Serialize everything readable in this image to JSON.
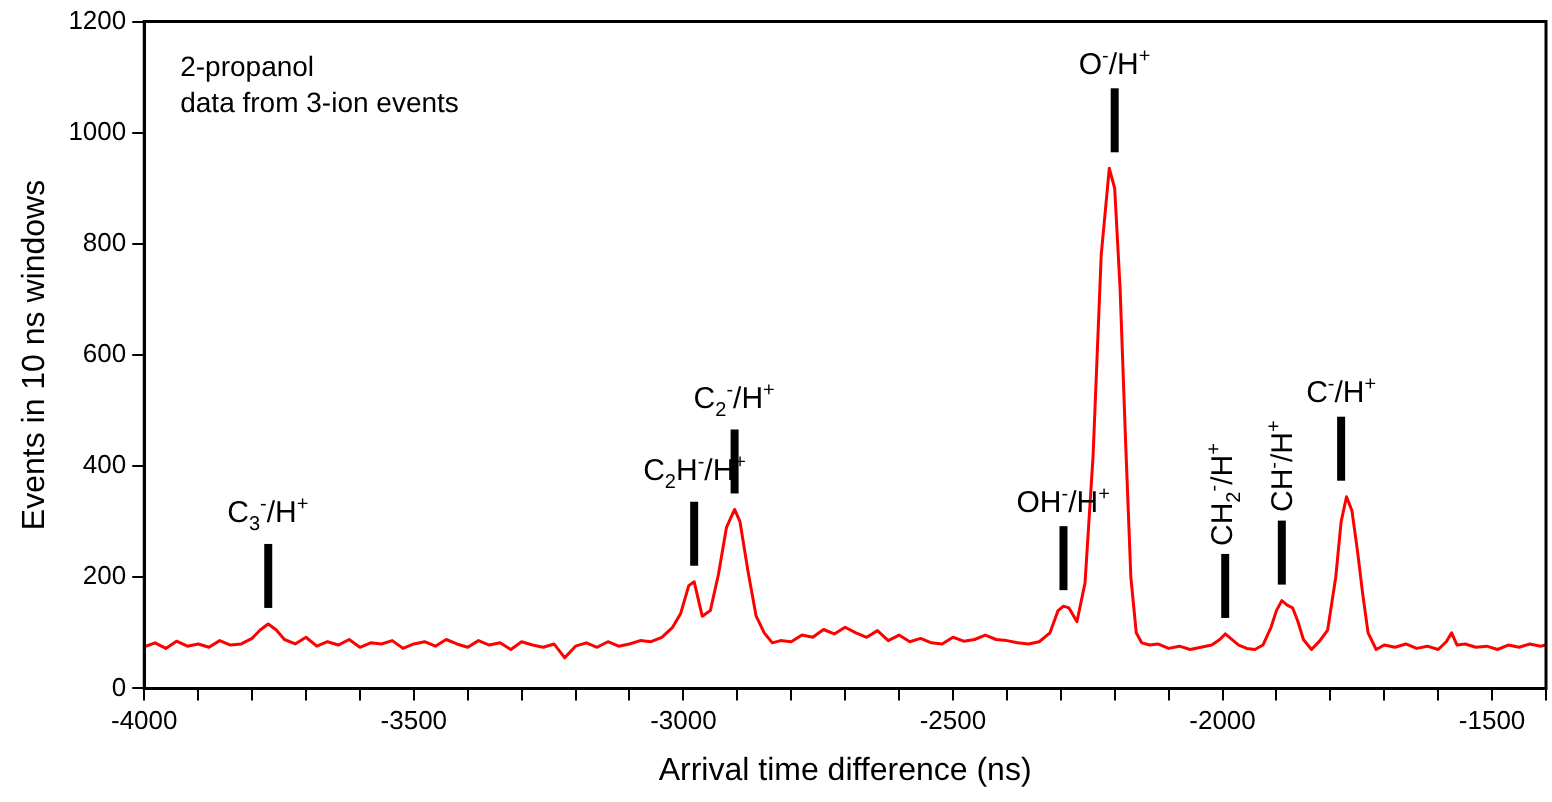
{
  "chart_data": {
    "type": "line",
    "xlabel": "Arrival time difference (ns)",
    "ylabel": "Events in 10 ns windows",
    "xlim": [
      -4000,
      -1400
    ],
    "ylim": [
      0,
      1200
    ],
    "xticks": [
      -4000,
      {
        "value": -3900,
        "label": null
      },
      {
        "value": -3800,
        "label": null
      },
      {
        "value": -3700,
        "label": null
      },
      {
        "value": -3600,
        "label": null
      },
      -3500,
      {
        "value": -3400,
        "label": null
      },
      {
        "value": -3300,
        "label": null
      },
      {
        "value": -3200,
        "label": null
      },
      {
        "value": -3100,
        "label": null
      },
      -3000,
      {
        "value": -2900,
        "label": null
      },
      {
        "value": -2800,
        "label": null
      },
      {
        "value": -2700,
        "label": null
      },
      {
        "value": -2600,
        "label": null
      },
      -2500,
      {
        "value": -2400,
        "label": null
      },
      {
        "value": -2300,
        "label": null
      },
      {
        "value": -2200,
        "label": null
      },
      {
        "value": -2100,
        "label": null
      },
      -2000,
      {
        "value": -1900,
        "label": null
      },
      {
        "value": -1800,
        "label": null
      },
      {
        "value": -1700,
        "label": null
      },
      {
        "value": -1600,
        "label": null
      },
      -1500,
      {
        "value": -1400,
        "label": null
      }
    ],
    "yticks": [
      0,
      200,
      400,
      600,
      800,
      1000,
      1200
    ],
    "grid": false,
    "legend": false,
    "marker": "none",
    "line_style": "solid",
    "series": [
      {
        "color": "#ff0000",
        "x": [
          -4000,
          -3980,
          -3960,
          -3940,
          -3920,
          -3900,
          -3880,
          -3860,
          -3840,
          -3820,
          -3800,
          -3785,
          -3770,
          -3755,
          -3740,
          -3720,
          -3700,
          -3680,
          -3660,
          -3640,
          -3620,
          -3600,
          -3580,
          -3560,
          -3540,
          -3520,
          -3500,
          -3480,
          -3460,
          -3440,
          -3420,
          -3400,
          -3380,
          -3360,
          -3340,
          -3320,
          -3300,
          -3280,
          -3260,
          -3240,
          -3220,
          -3200,
          -3180,
          -3160,
          -3140,
          -3120,
          -3100,
          -3080,
          -3060,
          -3040,
          -3020,
          -3005,
          -2990,
          -2980,
          -2965,
          -2950,
          -2935,
          -2920,
          -2905,
          -2895,
          -2880,
          -2865,
          -2850,
          -2835,
          -2820,
          -2800,
          -2780,
          -2760,
          -2740,
          -2720,
          -2700,
          -2680,
          -2660,
          -2640,
          -2620,
          -2600,
          -2580,
          -2560,
          -2540,
          -2520,
          -2500,
          -2480,
          -2460,
          -2440,
          -2420,
          -2400,
          -2380,
          -2360,
          -2340,
          -2320,
          -2305,
          -2295,
          -2285,
          -2270,
          -2255,
          -2240,
          -2225,
          -2210,
          -2200,
          -2190,
          -2180,
          -2170,
          -2160,
          -2150,
          -2135,
          -2120,
          -2100,
          -2080,
          -2060,
          -2040,
          -2020,
          -2005,
          -1995,
          -1985,
          -1970,
          -1955,
          -1940,
          -1925,
          -1910,
          -1900,
          -1890,
          -1880,
          -1870,
          -1860,
          -1850,
          -1835,
          -1820,
          -1805,
          -1790,
          -1780,
          -1770,
          -1760,
          -1750,
          -1740,
          -1730,
          -1715,
          -1700,
          -1680,
          -1660,
          -1640,
          -1620,
          -1600,
          -1585,
          -1575,
          -1565,
          -1550,
          -1530,
          -1510,
          -1490,
          -1470,
          -1450,
          -1430,
          -1410,
          -1400
        ],
        "values": [
          75,
          82,
          72,
          85,
          76,
          80,
          74,
          86,
          78,
          80,
          90,
          105,
          116,
          105,
          88,
          80,
          92,
          76,
          84,
          78,
          88,
          74,
          82,
          80,
          86,
          72,
          80,
          84,
          76,
          88,
          80,
          74,
          86,
          78,
          82,
          70,
          84,
          78,
          74,
          80,
          55,
          76,
          82,
          74,
          84,
          76,
          80,
          86,
          84,
          92,
          110,
          135,
          185,
          192,
          130,
          140,
          205,
          290,
          322,
          300,
          210,
          130,
          100,
          82,
          86,
          84,
          96,
          92,
          106,
          98,
          110,
          100,
          92,
          104,
          86,
          96,
          84,
          90,
          82,
          80,
          92,
          85,
          88,
          96,
          88,
          86,
          82,
          80,
          84,
          100,
          140,
          148,
          145,
          120,
          190,
          420,
          780,
          936,
          900,
          720,
          450,
          200,
          100,
          82,
          78,
          80,
          72,
          76,
          70,
          74,
          78,
          88,
          98,
          90,
          78,
          72,
          70,
          78,
          110,
          140,
          158,
          150,
          145,
          120,
          88,
          70,
          85,
          105,
          200,
          300,
          345,
          320,
          250,
          170,
          100,
          70,
          78,
          74,
          80,
          72,
          76,
          70,
          84,
          100,
          78,
          80,
          74,
          76,
          70,
          78,
          74,
          80,
          76,
          78
        ]
      }
    ],
    "annotations": [
      "2-propanol",
      "data from 3-ion events",
      {
        "text": "C$_{3}$$^{-}$/H$^{+}$",
        "x": -3770,
        "y": 116
      },
      {
        "text": "C$_{2}$H$^{-}$/H$^{+}$",
        "x": -2980,
        "y": 192
      },
      {
        "text": "C$_{2}$$^{-}$/H$^{+}$",
        "x": -2905,
        "y": 322
      },
      {
        "text": "OH$^{-}$/H$^{+}$",
        "x": -2295,
        "y": 148
      },
      {
        "text": "O$^{-}$/H$^{+}$",
        "x": -2200,
        "y": 936
      },
      {
        "text": "CH$_{2}$$^{-}$/H$^{+}$",
        "x": -1995,
        "y": 98
      },
      {
        "text": "CH$^{-}$/H$^{+}$",
        "x": -1890,
        "y": 158
      },
      {
        "text": "C$^{-}$/H$^{+}$",
        "x": -1780,
        "y": 345
      }
    ]
  }
}
